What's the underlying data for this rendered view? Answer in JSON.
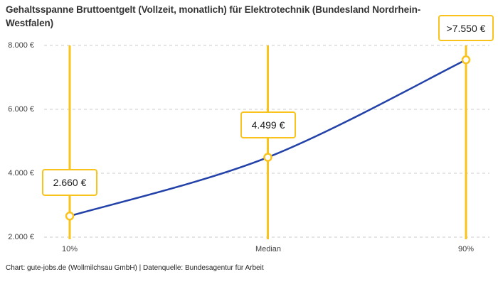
{
  "page": {
    "title": "Gehaltsspanne Bruttoentgelt (Vollzeit, monatlich) für Elektrotechnik (Bundesland Nordrhein-Westfalen)",
    "footer": "Chart: gute-jobs.de (Wollmilchsau GmbH) | Datenquelle: Bundesagentur für Arbeit"
  },
  "chart_data": {
    "type": "line",
    "title": "Gehaltsspanne Bruttoentgelt (Vollzeit, monatlich) für Elektrotechnik (Bundesland Nordrhein-Westfalen)",
    "categories": [
      "10%",
      "Median",
      "90%"
    ],
    "values": [
      2660,
      4499,
      7550
    ],
    "point_labels": [
      "2.660 €",
      "4.499 €",
      ">7.550 €"
    ],
    "xlabel": "",
    "ylabel": "",
    "ylim": [
      2000,
      8000
    ],
    "y_grid_values": [
      2000,
      4000,
      6000,
      8000
    ],
    "y_tick_labels": [
      "2.000 €",
      "4.000 €",
      "6.000 €",
      "8.000 €"
    ],
    "grid": "horizontal-dashed",
    "legend": "none",
    "annotation_style": "vertical-marker-lines-with-value-boxes",
    "colors": {
      "line": "#2342A9",
      "accent": "#F9C31B",
      "grid": "#CBCBCB",
      "marker_fill": "#FFFFFF"
    }
  }
}
